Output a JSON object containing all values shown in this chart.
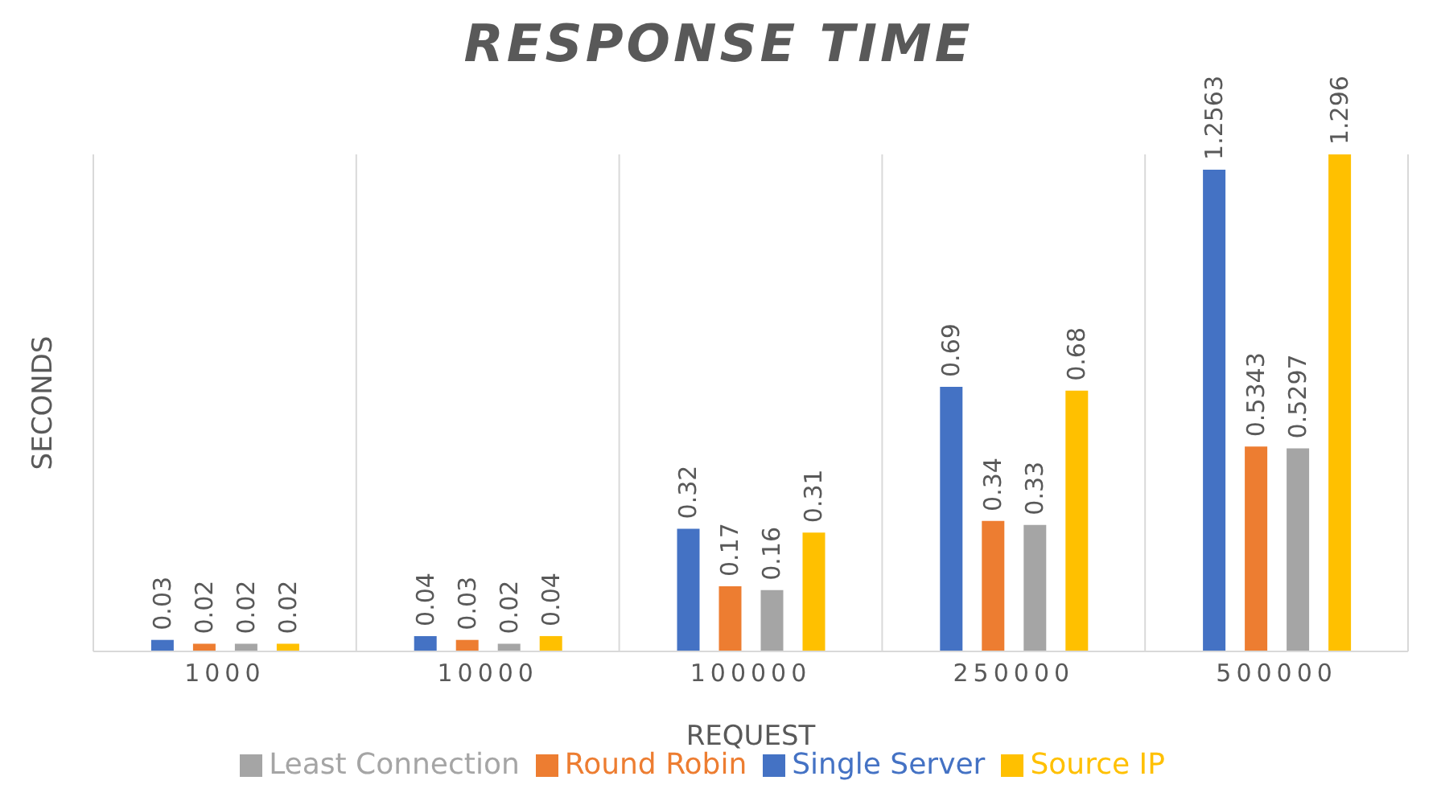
{
  "chart_data": {
    "type": "bar",
    "title": "RESPONSE TIME",
    "xlabel": "REQUEST",
    "ylabel": "SECONDS",
    "categories": [
      "1000",
      "10000",
      "100000",
      "250000",
      "500000"
    ],
    "series": [
      {
        "name": "Single Server",
        "color": "#4472c4",
        "values": [
          0.03,
          0.04,
          0.32,
          0.69,
          1.2563
        ]
      },
      {
        "name": "Round Robin",
        "color": "#ed7d31",
        "values": [
          0.02,
          0.03,
          0.17,
          0.34,
          0.5343
        ]
      },
      {
        "name": "Least Connection",
        "color": "#a5a5a5",
        "values": [
          0.02,
          0.02,
          0.16,
          0.33,
          0.5297
        ]
      },
      {
        "name": "Source IP",
        "color": "#ffc000",
        "values": [
          0.02,
          0.04,
          0.31,
          0.68,
          1.296
        ]
      }
    ],
    "data_labels": true,
    "grid": "x",
    "legend": "bottom"
  }
}
